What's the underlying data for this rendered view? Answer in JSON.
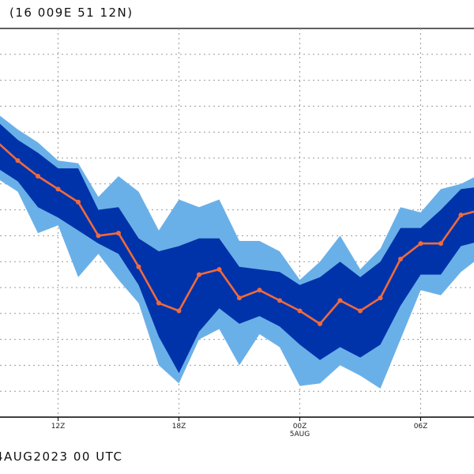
{
  "header": {
    "location": "(16 009E 51 12N)"
  },
  "footer": {
    "run_time": "4AUG2023 00 UTC"
  },
  "chart_data": {
    "type": "line",
    "title": "",
    "xlabel": "",
    "ylabel": "",
    "ylim": [
      0,
      15
    ],
    "grid": true,
    "x_ticks": [
      {
        "label": "12Z",
        "sublabel": "",
        "x": 3
      },
      {
        "label": "18Z",
        "sublabel": "",
        "x": 9
      },
      {
        "label": "00Z",
        "sublabel": "5AUG",
        "x": 15
      },
      {
        "label": "06Z",
        "sublabel": "",
        "x": 21
      }
    ],
    "x": [
      0,
      1,
      2,
      3,
      4,
      5,
      6,
      7,
      8,
      9,
      10,
      11,
      12,
      13,
      14,
      15,
      16,
      17,
      18,
      19,
      20,
      21,
      22,
      23,
      24
    ],
    "series": [
      {
        "role": "mean",
        "color": "#f06a3c",
        "values": [
          10.6,
          9.9,
          9.3,
          8.8,
          8.3,
          7.0,
          7.1,
          5.8,
          4.4,
          4.1,
          5.5,
          5.7,
          4.6,
          4.9,
          4.5,
          4.1,
          3.6,
          4.5,
          4.1,
          4.6,
          6.1,
          6.7,
          6.7,
          7.8,
          8.0
        ]
      },
      {
        "role": "inner-band",
        "color": "#0033aa",
        "upper": [
          11.4,
          10.7,
          10.2,
          9.6,
          9.6,
          8.0,
          8.1,
          6.9,
          6.4,
          6.6,
          6.9,
          6.9,
          5.8,
          5.7,
          5.6,
          5.1,
          5.4,
          6.0,
          5.4,
          6.0,
          7.3,
          7.3,
          8.0,
          8.8,
          8.9
        ]
      },
      {
        "role": "inner-band-lower",
        "color": "#0033aa",
        "lower": [
          9.6,
          9.1,
          8.1,
          7.7,
          7.2,
          6.7,
          6.3,
          5.1,
          3.1,
          1.7,
          3.3,
          4.2,
          3.6,
          3.9,
          3.5,
          2.8,
          2.2,
          2.7,
          2.3,
          2.8,
          4.3,
          5.5,
          5.5,
          6.6,
          6.8
        ]
      },
      {
        "role": "outer-band",
        "color": "#6ab0e8",
        "upper": [
          11.7,
          11.1,
          10.6,
          9.9,
          9.8,
          8.5,
          9.3,
          8.7,
          7.2,
          8.4,
          8.1,
          8.4,
          6.8,
          6.8,
          6.4,
          5.3,
          6.0,
          7.0,
          5.7,
          6.5,
          8.1,
          7.9,
          8.8,
          9.0,
          9.4
        ]
      },
      {
        "role": "outer-band-lower",
        "color": "#6ab0e8",
        "lower": [
          9.2,
          8.7,
          7.1,
          7.4,
          5.4,
          6.3,
          5.3,
          4.4,
          2.0,
          1.3,
          3.0,
          3.4,
          2.0,
          3.2,
          2.7,
          1.2,
          1.3,
          2.0,
          1.6,
          1.1,
          3.0,
          4.9,
          4.7,
          5.6,
          6.2
        ]
      }
    ]
  }
}
